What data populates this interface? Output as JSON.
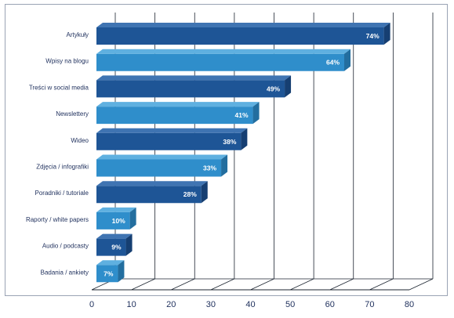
{
  "chart_data": {
    "type": "bar",
    "orientation": "horizontal",
    "style": "3d",
    "categories": [
      "Artykuły",
      "Wpisy na blogu",
      "Treści w social media",
      "Newslettery",
      "Wideo",
      "Zdjęcia / infografiki",
      "Poradniki / tutoriale",
      "Raporty / white papers",
      "Audio / podcasty",
      "Badania / ankiety"
    ],
    "values": [
      74,
      64,
      49,
      41,
      38,
      33,
      28,
      10,
      9,
      7
    ],
    "value_labels": [
      "74%",
      "64%",
      "49%",
      "41%",
      "38%",
      "33%",
      "28%",
      "10%",
      "9%",
      "7%"
    ],
    "xlim": [
      0,
      80
    ],
    "xticks": [
      0,
      10,
      20,
      30,
      40,
      50,
      60,
      70,
      80
    ],
    "xtick_labels": [
      "0",
      "10",
      "20",
      "30",
      "40",
      "50",
      "60",
      "70",
      "80"
    ],
    "grid": true,
    "colors": {
      "dark": "#1e5596",
      "dark_top": "#3f74b2",
      "dark_side": "#163f72",
      "light": "#2f8ecb",
      "light_top": "#5fb0e0",
      "light_side": "#236e9f"
    },
    "title": "",
    "xlabel": "",
    "ylabel": ""
  }
}
